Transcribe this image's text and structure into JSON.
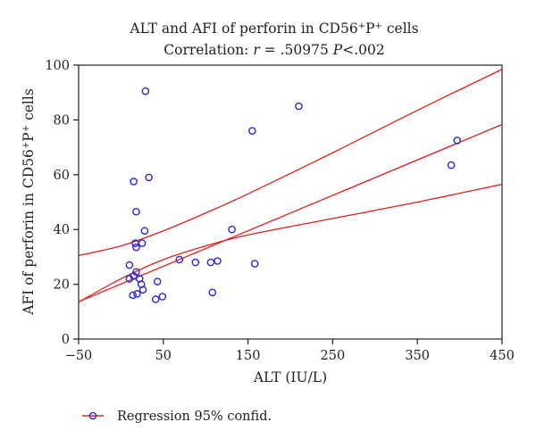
{
  "chart_data": {
    "type": "scatter",
    "title": "ALT and AFI of perforin in CD56+P+ cells",
    "title_parts": {
      "prefix": "ALT and AFI of perforin in CD56",
      "sup1": "+",
      "mid": "P",
      "sup2": "+",
      "suffix": " cells"
    },
    "subtitle": "Correlation: r = .50975 P<.002",
    "subtitle_parts": {
      "lead": "Correlation: ",
      "r": "r",
      "eq": " = .50975 ",
      "p": "P",
      "tail": "<.002"
    },
    "xlabel": "ALT (IU/L)",
    "ylabel": "AFI of perforin in CD56+P+ cells",
    "ylabel_parts": {
      "prefix": "AFI of perforin in CD56",
      "sup1": "+",
      "mid": "P",
      "sup2": "+",
      "suffix": " cells"
    },
    "xlim": [
      -50,
      450
    ],
    "ylim": [
      0,
      100
    ],
    "xticks": [
      -50,
      50,
      150,
      250,
      350,
      450
    ],
    "xtick_labels": [
      "−50",
      "50",
      "150",
      "250",
      "350",
      "450"
    ],
    "yticks": [
      0,
      20,
      40,
      60,
      80,
      100
    ],
    "ytick_labels": [
      "0",
      "20",
      "40",
      "60",
      "80",
      "100"
    ],
    "grid": false,
    "legend_position": "bottom-left",
    "colors": {
      "points": "#2b2bcc",
      "lines": "#e02020",
      "axes": "#222222"
    },
    "series": [
      {
        "marker": "open-circle",
        "points": [
          [
            29,
            90.5
          ],
          [
            15,
            57.5
          ],
          [
            33,
            59
          ],
          [
            18,
            46.5
          ],
          [
            28,
            39.5
          ],
          [
            17,
            35
          ],
          [
            25,
            35
          ],
          [
            18,
            33.5
          ],
          [
            10,
            27
          ],
          [
            10,
            22
          ],
          [
            18,
            24.5
          ],
          [
            15,
            23
          ],
          [
            22,
            22
          ],
          [
            24,
            20
          ],
          [
            26,
            18
          ],
          [
            14,
            16
          ],
          [
            19,
            16.5
          ],
          [
            43,
            21
          ],
          [
            41,
            14.5
          ],
          [
            49,
            15.5
          ],
          [
            69,
            29
          ],
          [
            88,
            28
          ],
          [
            106,
            28
          ],
          [
            114,
            28.5
          ],
          [
            131,
            40
          ],
          [
            108,
            17
          ],
          [
            155,
            76
          ],
          [
            158,
            27.5
          ],
          [
            210,
            85
          ],
          [
            390,
            63.5
          ],
          [
            397,
            72.5
          ]
        ]
      }
    ],
    "regression": {
      "slope": 0.1294,
      "intercept": 20.1,
      "x_range": [
        -50,
        450
      ],
      "lower_band": [
        [
          -50,
          13.5
        ],
        [
          0,
          22
        ],
        [
          50,
          29
        ],
        [
          100,
          34
        ],
        [
          150,
          38
        ],
        [
          250,
          44
        ],
        [
          350,
          50
        ],
        [
          450,
          56.5
        ]
      ],
      "upper_band": [
        [
          -50,
          30.5
        ],
        [
          0,
          34
        ],
        [
          50,
          39.5
        ],
        [
          100,
          46
        ],
        [
          150,
          53
        ],
        [
          250,
          68
        ],
        [
          350,
          83.5
        ],
        [
          450,
          98.5
        ]
      ]
    },
    "legend": {
      "label": "Regression 95% confid."
    }
  }
}
